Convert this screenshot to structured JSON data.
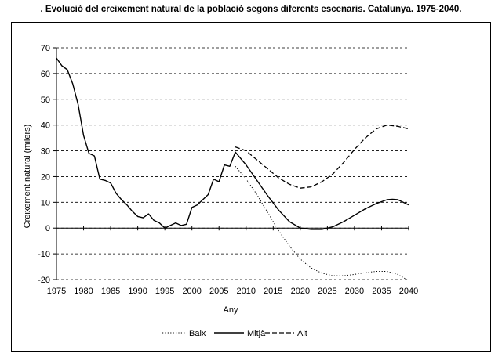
{
  "chart_data": {
    "type": "line",
    "title": ". Evolució del creixement natural de la població segons diferents escenaris. Catalunya. 1975-2040.",
    "xlabel": "Any",
    "ylabel": "Creixement natural (milers)",
    "xlim": [
      1975,
      2040
    ],
    "ylim": [
      -20,
      70
    ],
    "xticks": [
      "1975",
      "1980",
      "1985",
      "1990",
      "1995",
      "2000",
      "2005",
      "2010",
      "2015",
      "2020",
      "2025",
      "2030",
      "2035",
      "2040"
    ],
    "yticks": [
      "70",
      "60",
      "50",
      "40",
      "30",
      "20",
      "10",
      "0",
      "-10",
      "-20"
    ],
    "grid": "horizontal dashed",
    "legend": "bottom-center",
    "series": [
      {
        "name": "Baix",
        "style": "dotted",
        "x": [
          2008,
          2010,
          2012,
          2014,
          2016,
          2018,
          2020,
          2022,
          2024,
          2026,
          2028,
          2030,
          2032,
          2034,
          2036,
          2038,
          2040
        ],
        "y": [
          24,
          19,
          13,
          6,
          -1,
          -7,
          -12,
          -15.5,
          -17.5,
          -18.5,
          -18.5,
          -18,
          -17.3,
          -16.8,
          -16.8,
          -18,
          -20.5
        ]
      },
      {
        "name": "Mitjà",
        "style": "solid",
        "x": [
          1975,
          1976,
          1977,
          1978,
          1979,
          1980,
          1981,
          1982,
          1983,
          1984,
          1985,
          1986,
          1987,
          1988,
          1989,
          1990,
          1991,
          1992,
          1993,
          1994,
          1995,
          1996,
          1997,
          1998,
          1999,
          2000,
          2001,
          2002,
          2003,
          2004,
          2005,
          2006,
          2007,
          2008,
          2010,
          2012,
          2014,
          2016,
          2018,
          2020,
          2022,
          2024,
          2026,
          2028,
          2030,
          2032,
          2034,
          2036,
          2037,
          2038,
          2040
        ],
        "y": [
          66,
          63,
          61.5,
          56,
          48,
          36,
          29,
          28,
          19,
          18.5,
          17.5,
          13.5,
          11,
          9,
          6.5,
          4.5,
          4,
          5.5,
          3,
          2,
          0,
          1,
          2,
          1,
          1.5,
          8,
          9,
          11,
          13,
          19,
          18,
          24.5,
          24,
          29.5,
          24.5,
          18.5,
          12.5,
          7,
          2.5,
          0,
          -0.5,
          -0.5,
          0.5,
          2.5,
          5,
          7.5,
          9.5,
          11,
          11.2,
          11,
          9
        ]
      },
      {
        "name": "Alt",
        "style": "dashed",
        "x": [
          2008,
          2010,
          2012,
          2014,
          2016,
          2018,
          2020,
          2022,
          2024,
          2026,
          2028,
          2030,
          2032,
          2034,
          2036,
          2038,
          2040
        ],
        "y": [
          31.5,
          30,
          26.5,
          23,
          19.5,
          17,
          15.5,
          16,
          18,
          21,
          25.5,
          30.5,
          35,
          38.5,
          40,
          39.5,
          38.5
        ]
      }
    ]
  }
}
